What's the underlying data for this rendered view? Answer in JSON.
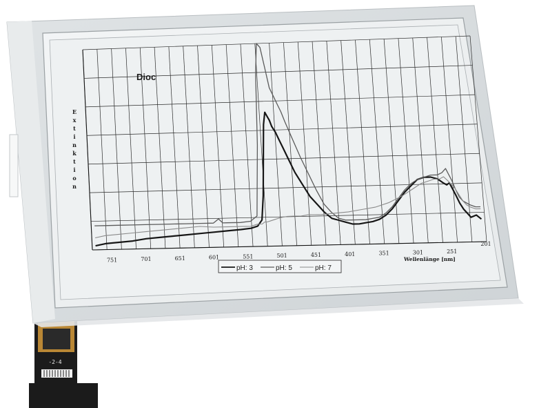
{
  "photo": {
    "subject": "e-paper display panel showing an absorption spectrum chart",
    "colors": {
      "panel_frame": "#d6dbde",
      "screen": "#eef1f2",
      "ink_dark": "#161616",
      "ink_mid": "#5a5a5a",
      "ink_light": "#8a8a8a",
      "grid": "#2a2a2a",
      "flex_cable": "#1b1b1b",
      "flex_gold": "#d59a3a"
    },
    "cable_label": "-2-4"
  },
  "chart_data": {
    "type": "line",
    "title": "Dioc",
    "xlabel": "Wellenlänge [nm]",
    "ylabel": "Extinktion",
    "x_ticks": [
      "751",
      "701",
      "651",
      "601",
      "551",
      "501",
      "451",
      "401",
      "351",
      "301",
      "251",
      "201"
    ],
    "xlim": [
      780,
      200
    ],
    "x_reversed": true,
    "ylim": [
      0,
      1
    ],
    "grid": true,
    "legend_position": "bottom-center",
    "series": [
      {
        "name": "pH: 3",
        "style": "thick-dark",
        "x": [
          775,
          760,
          740,
          720,
          700,
          680,
          660,
          640,
          620,
          600,
          580,
          560,
          545,
          535,
          528,
          524,
          520,
          517,
          514,
          511,
          508,
          505,
          500,
          495,
          490,
          485,
          475,
          465,
          455,
          445,
          435,
          425,
          415,
          405,
          395,
          385,
          375,
          365,
          355,
          345,
          335,
          325,
          315,
          305,
          295,
          285,
          275,
          265,
          257,
          252,
          248,
          244,
          240,
          235,
          230,
          225,
          220,
          212,
          205
        ],
        "y": [
          0.02,
          0.03,
          0.035,
          0.04,
          0.05,
          0.055,
          0.06,
          0.065,
          0.07,
          0.075,
          0.08,
          0.085,
          0.09,
          0.1,
          0.13,
          0.25,
          0.45,
          0.6,
          0.66,
          0.64,
          0.62,
          0.59,
          0.56,
          0.52,
          0.48,
          0.44,
          0.36,
          0.3,
          0.24,
          0.2,
          0.16,
          0.13,
          0.12,
          0.11,
          0.1,
          0.1,
          0.105,
          0.11,
          0.12,
          0.14,
          0.17,
          0.21,
          0.25,
          0.28,
          0.31,
          0.32,
          0.32,
          0.31,
          0.29,
          0.28,
          0.29,
          0.26,
          0.23,
          0.19,
          0.16,
          0.14,
          0.12,
          0.13,
          0.11
        ]
      },
      {
        "name": "pH: 5",
        "style": "mid-gray",
        "x": [
          775,
          760,
          740,
          720,
          700,
          680,
          660,
          640,
          620,
          600,
          592,
          586,
          580,
          560,
          545,
          535,
          528,
          524,
          520,
          515,
          510,
          505,
          500,
          495,
          490,
          485,
          475,
          465,
          455,
          445,
          435,
          425,
          415,
          405,
          395,
          385,
          375,
          365,
          355,
          345,
          335,
          325,
          315,
          305,
          295,
          285,
          275,
          265,
          258,
          252,
          248,
          244,
          240,
          235,
          230,
          225,
          220,
          212,
          205
        ],
        "y": [
          0.12,
          0.12,
          0.12,
          0.12,
          0.12,
          0.12,
          0.12,
          0.12,
          0.12,
          0.12,
          0.14,
          0.12,
          0.12,
          0.12,
          0.125,
          0.15,
          0.5,
          0.85,
          1.0,
          0.98,
          0.88,
          0.78,
          0.74,
          0.7,
          0.66,
          0.61,
          0.52,
          0.43,
          0.35,
          0.27,
          0.2,
          0.16,
          0.13,
          0.12,
          0.12,
          0.12,
          0.12,
          0.125,
          0.13,
          0.15,
          0.18,
          0.22,
          0.26,
          0.29,
          0.31,
          0.32,
          0.33,
          0.33,
          0.34,
          0.36,
          0.33,
          0.3,
          0.26,
          0.22,
          0.2,
          0.19,
          0.18,
          0.17,
          0.17
        ]
      },
      {
        "name": "pH: 7",
        "style": "light-gray",
        "x": [
          775,
          760,
          740,
          720,
          700,
          680,
          660,
          640,
          620,
          600,
          580,
          560,
          545,
          535,
          528,
          524,
          520,
          515,
          510,
          505,
          500,
          490,
          480,
          470,
          460,
          450,
          440,
          420,
          400,
          380,
          360,
          340,
          320,
          300,
          290,
          280,
          270,
          262,
          256,
          250,
          245,
          240,
          235,
          230,
          225,
          220,
          212,
          205
        ],
        "y": [
          0.06,
          0.07,
          0.075,
          0.08,
          0.085,
          0.09,
          0.095,
          0.1,
          0.105,
          0.1,
          0.1,
          0.1,
          0.1,
          0.11,
          0.11,
          0.12,
          0.12,
          0.125,
          0.13,
          0.135,
          0.14,
          0.145,
          0.145,
          0.145,
          0.15,
          0.15,
          0.15,
          0.155,
          0.16,
          0.17,
          0.18,
          0.2,
          0.23,
          0.27,
          0.29,
          0.3,
          0.31,
          0.31,
          0.32,
          0.3,
          0.28,
          0.26,
          0.23,
          0.2,
          0.18,
          0.17,
          0.16,
          0.16
        ]
      }
    ],
    "legend": [
      "pH: 3",
      "pH: 5",
      "pH: 7"
    ]
  }
}
